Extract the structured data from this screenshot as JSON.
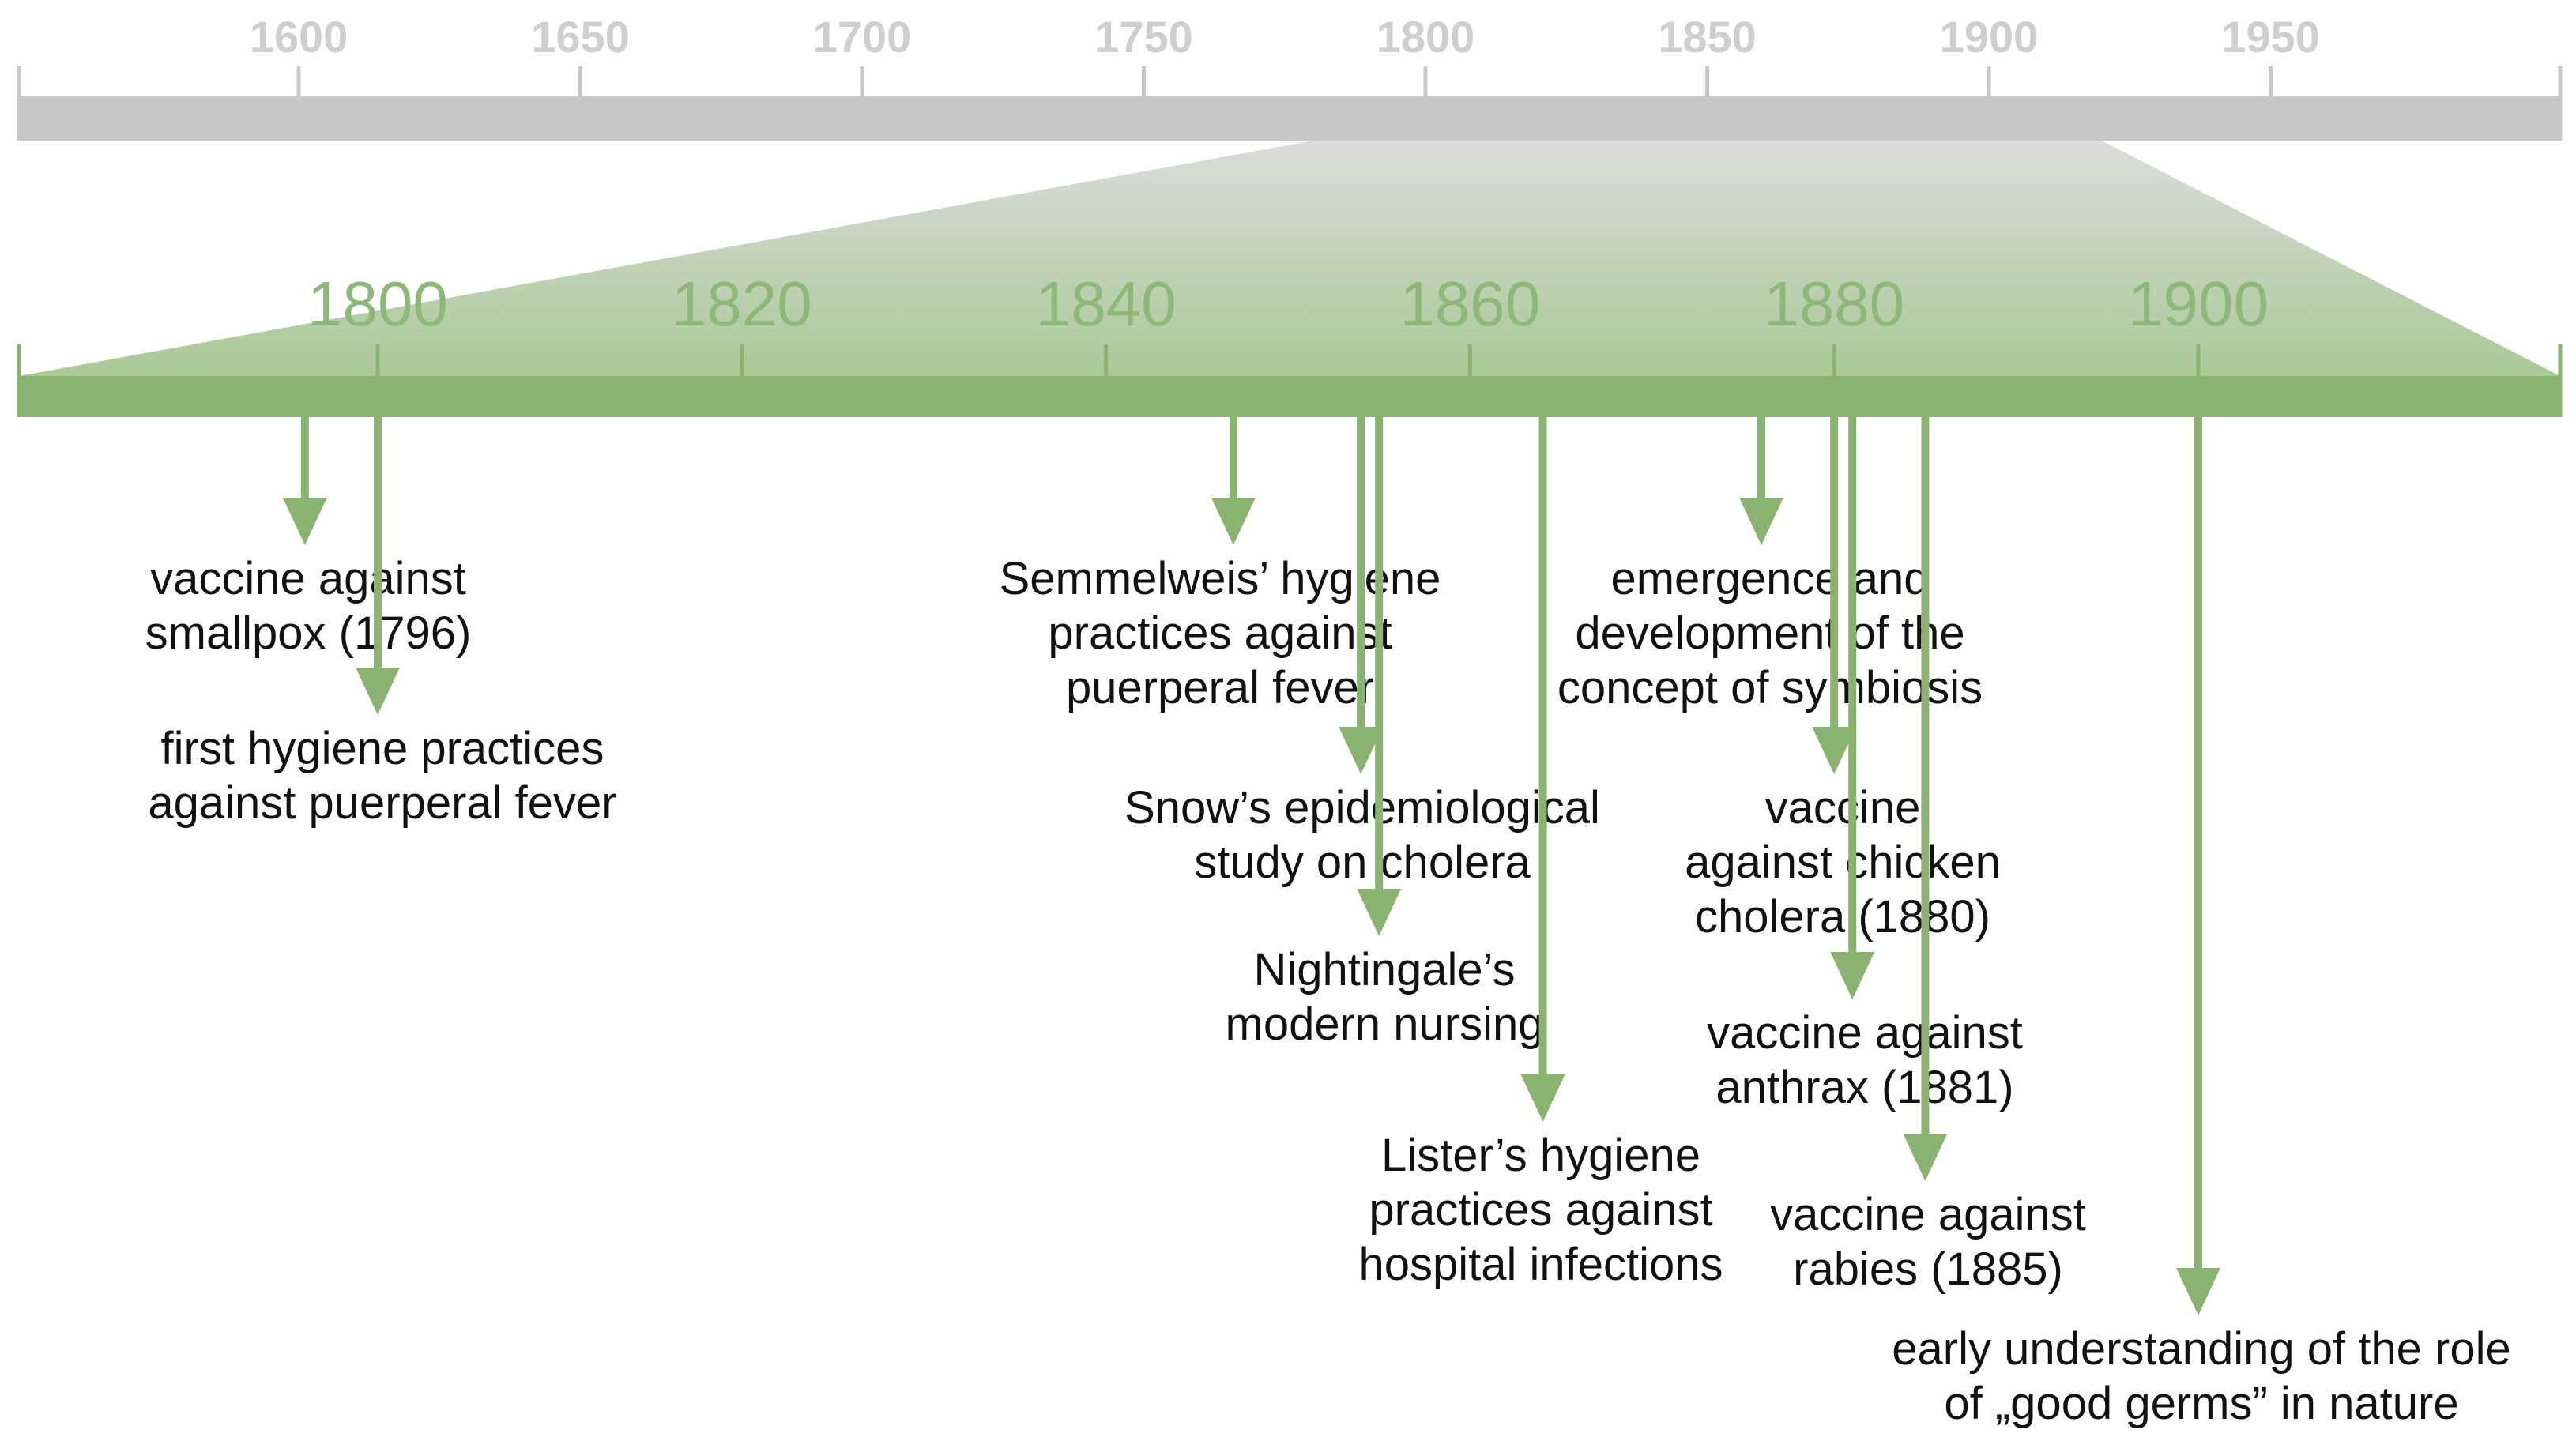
{
  "overview_axis": {
    "ticks": [
      "1600",
      "1650",
      "1700",
      "1750",
      "1800",
      "1850",
      "1900",
      "1950"
    ],
    "zoom_window": [
      "1780",
      "1920"
    ]
  },
  "zoom_axis": {
    "ticks": [
      "1800",
      "1820",
      "1840",
      "1860",
      "1880",
      "1900"
    ]
  },
  "events": [
    {
      "year": 1796,
      "lines": [
        "vaccine against",
        "smallpox (1796)"
      ]
    },
    {
      "year": 1800,
      "lines": [
        "first hygiene practices",
        "against puerperal fever"
      ]
    },
    {
      "year": 1847,
      "lines": [
        "Semmelweis’ hygiene",
        "practices against",
        "puerperal fever"
      ]
    },
    {
      "year": 1854,
      "lines": [
        "Snow’s epidemiological",
        "study on cholera"
      ]
    },
    {
      "year": 1855,
      "lines": [
        "Nightingale’s",
        "modern nursing"
      ]
    },
    {
      "year": 1864,
      "lines": [
        "Lister’s hygiene",
        "practices against",
        "hospital infections"
      ]
    },
    {
      "year": 1876,
      "lines": [
        "emergence and",
        "development of the",
        "concept of symbiosis"
      ]
    },
    {
      "year": 1880,
      "lines": [
        "vaccine",
        "against chicken",
        "cholera (1880)"
      ]
    },
    {
      "year": 1881,
      "lines": [
        "vaccine against",
        "anthrax (1881)"
      ]
    },
    {
      "year": 1885,
      "lines": [
        "vaccine against",
        "rabies (1885)"
      ]
    },
    {
      "year": 1900,
      "lines": [
        "early understanding of the role",
        "of „good germs” in nature"
      ]
    }
  ],
  "colors": {
    "overview_bar": "#c8c8c8",
    "overview_tick_text": "#cfcfcf",
    "zoom_bar": "#8ab371",
    "zoom_tick_text": "#8db87a",
    "arrow": "#8ab371",
    "label_text": "#111111"
  }
}
